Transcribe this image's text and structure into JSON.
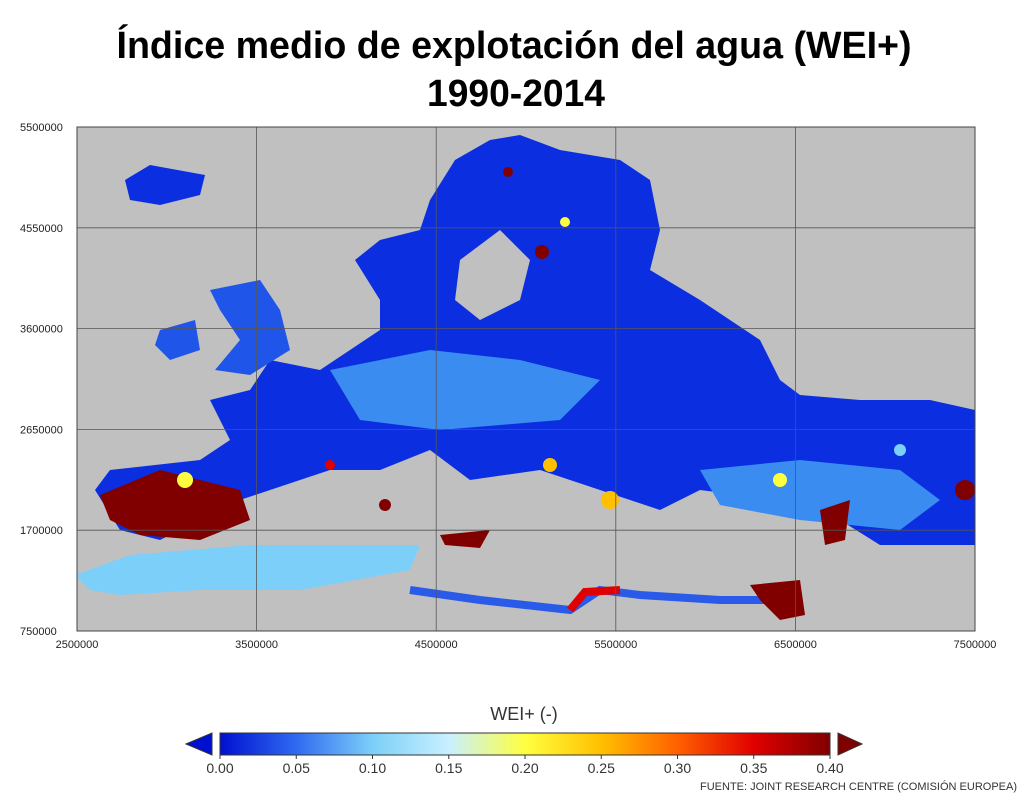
{
  "title": [
    "Índice medio de explotación del agua (WEI+)",
    "1990-2014"
  ],
  "map": {
    "background": "#c0c0c0",
    "xlim": [
      2500000,
      7500000
    ],
    "xticks": [
      2500000,
      3500000,
      4500000,
      5500000,
      6500000,
      7500000
    ],
    "ylim": [
      750000,
      5500000
    ],
    "yticks": [
      750000,
      1700000,
      2650000,
      3600000,
      4550000,
      5500000
    ]
  },
  "colorbar": {
    "label": "WEI+ (-)",
    "lim": [
      0,
      0.4
    ],
    "colors": [
      "#0010d0",
      "#2f6af0",
      "#7ccff8",
      "#c8f0ff",
      "#ffff40",
      "#ffc000",
      "#ff6000",
      "#e00000",
      "#800000"
    ],
    "ticks": [
      {
        "value": 0,
        "label": "0.00"
      },
      0.05,
      {
        "value": 0.1,
        "label": "0.10"
      },
      0.15,
      {
        "value": 0.2,
        "label": "0.20"
      },
      0.25,
      {
        "value": 0.3,
        "label": "0.30"
      },
      0.35,
      {
        "value": 0.4,
        "label": "0.40"
      }
    ]
  },
  "source": "FUENTE: JOINT RESEARCH CENTRE (COMISIÓN EUROPEA)"
}
